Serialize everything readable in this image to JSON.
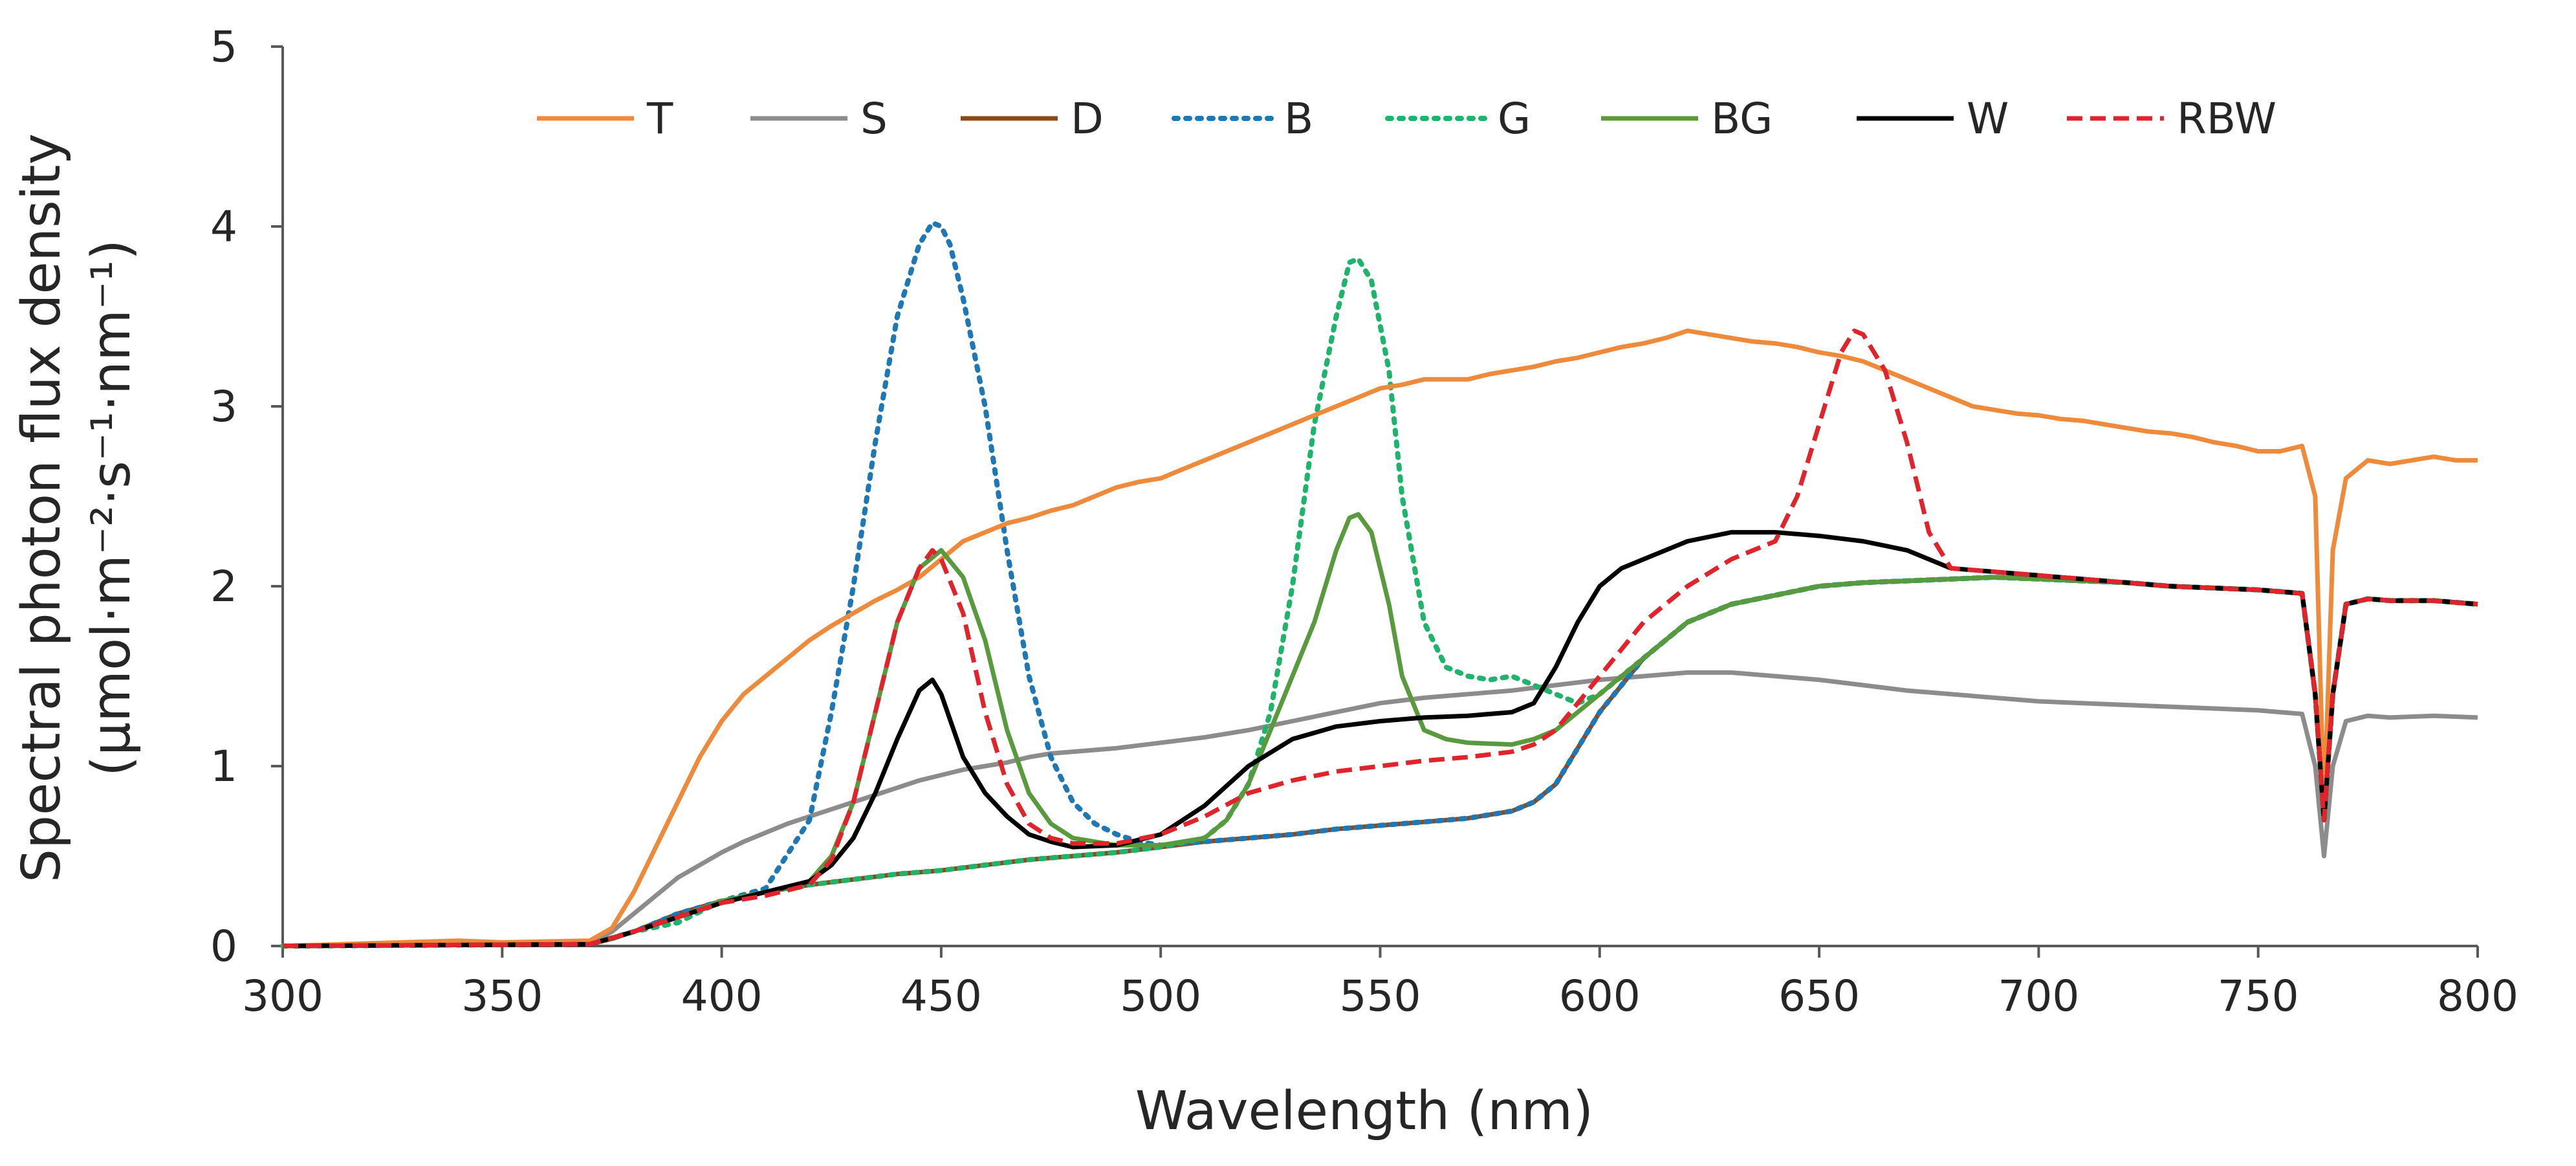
{
  "chart_data": {
    "type": "line",
    "title": "",
    "xlabel": "Wavelength (nm)",
    "ylabel_line1": "Spectral photon flux density",
    "ylabel_line2": "(µmol·m⁻²·s⁻¹·nm⁻¹)",
    "xlim": [
      300,
      800
    ],
    "ylim": [
      0,
      5
    ],
    "xticks": [
      300,
      350,
      400,
      450,
      500,
      550,
      600,
      650,
      700,
      750,
      800
    ],
    "yticks": [
      0,
      1,
      2,
      3,
      4,
      5
    ],
    "grid": false,
    "legend_position": "top",
    "series": [
      {
        "name": "T",
        "color": "#ED8A3C",
        "dash": "solid",
        "x": [
          300,
          340,
          350,
          370,
          375,
          380,
          385,
          390,
          395,
          400,
          405,
          410,
          415,
          420,
          425,
          430,
          435,
          440,
          445,
          450,
          455,
          460,
          465,
          470,
          475,
          480,
          485,
          490,
          495,
          500,
          505,
          510,
          515,
          520,
          525,
          530,
          535,
          540,
          545,
          550,
          555,
          560,
          565,
          570,
          575,
          580,
          585,
          590,
          595,
          600,
          605,
          610,
          615,
          620,
          625,
          630,
          635,
          640,
          645,
          650,
          655,
          660,
          665,
          670,
          675,
          680,
          685,
          690,
          695,
          700,
          705,
          710,
          715,
          720,
          725,
          730,
          735,
          740,
          745,
          750,
          755,
          760,
          763,
          765,
          767,
          770,
          775,
          780,
          785,
          790,
          795,
          800
        ],
        "y": [
          0,
          0.03,
          0.02,
          0.03,
          0.1,
          0.3,
          0.55,
          0.8,
          1.05,
          1.25,
          1.4,
          1.5,
          1.6,
          1.7,
          1.78,
          1.85,
          1.92,
          1.98,
          2.05,
          2.15,
          2.25,
          2.3,
          2.35,
          2.38,
          2.42,
          2.45,
          2.5,
          2.55,
          2.58,
          2.6,
          2.65,
          2.7,
          2.75,
          2.8,
          2.85,
          2.9,
          2.95,
          3.0,
          3.05,
          3.1,
          3.12,
          3.15,
          3.15,
          3.15,
          3.18,
          3.2,
          3.22,
          3.25,
          3.27,
          3.3,
          3.33,
          3.35,
          3.38,
          3.42,
          3.4,
          3.38,
          3.36,
          3.35,
          3.33,
          3.3,
          3.28,
          3.25,
          3.2,
          3.15,
          3.1,
          3.05,
          3.0,
          2.98,
          2.96,
          2.95,
          2.93,
          2.92,
          2.9,
          2.88,
          2.86,
          2.85,
          2.83,
          2.8,
          2.78,
          2.75,
          2.75,
          2.78,
          2.5,
          0.75,
          2.2,
          2.6,
          2.7,
          2.68,
          2.7,
          2.72,
          2.7,
          2.7
        ]
      },
      {
        "name": "S",
        "color": "#8C8C8C",
        "dash": "solid",
        "x": [
          300,
          370,
          375,
          380,
          385,
          390,
          395,
          400,
          405,
          410,
          415,
          420,
          425,
          430,
          435,
          440,
          445,
          450,
          455,
          460,
          465,
          470,
          475,
          480,
          490,
          500,
          510,
          520,
          530,
          540,
          550,
          560,
          570,
          580,
          590,
          600,
          610,
          620,
          630,
          640,
          650,
          660,
          670,
          680,
          690,
          700,
          710,
          720,
          730,
          740,
          750,
          755,
          760,
          763,
          765,
          767,
          770,
          775,
          780,
          790,
          800
        ],
        "y": [
          0,
          0.02,
          0.08,
          0.18,
          0.28,
          0.38,
          0.45,
          0.52,
          0.58,
          0.63,
          0.68,
          0.72,
          0.76,
          0.8,
          0.84,
          0.88,
          0.92,
          0.95,
          0.98,
          1.0,
          1.02,
          1.05,
          1.07,
          1.08,
          1.1,
          1.13,
          1.16,
          1.2,
          1.25,
          1.3,
          1.35,
          1.38,
          1.4,
          1.42,
          1.45,
          1.48,
          1.5,
          1.52,
          1.52,
          1.5,
          1.48,
          1.45,
          1.42,
          1.4,
          1.38,
          1.36,
          1.35,
          1.34,
          1.33,
          1.32,
          1.31,
          1.3,
          1.29,
          1.0,
          0.5,
          1.0,
          1.25,
          1.28,
          1.27,
          1.28,
          1.27
        ]
      },
      {
        "name": "D",
        "color": "#8B4A1E",
        "dash": "solid",
        "x": [
          300,
          370,
          375,
          380,
          385,
          390,
          400,
          410,
          420,
          430,
          440,
          450,
          460,
          470,
          480,
          490,
          500,
          510,
          520,
          530,
          540,
          550,
          560,
          570,
          580,
          585,
          590,
          595,
          600,
          605,
          610,
          620,
          630,
          640,
          650,
          660,
          670,
          680,
          690,
          700,
          710,
          720,
          730,
          740,
          750,
          755,
          760,
          763,
          765,
          767,
          770,
          775,
          780,
          790,
          800
        ],
        "y": [
          0,
          0.01,
          0.04,
          0.08,
          0.13,
          0.18,
          0.25,
          0.3,
          0.34,
          0.37,
          0.4,
          0.42,
          0.45,
          0.48,
          0.5,
          0.52,
          0.55,
          0.58,
          0.6,
          0.62,
          0.65,
          0.67,
          0.69,
          0.71,
          0.75,
          0.8,
          0.9,
          1.1,
          1.3,
          1.45,
          1.6,
          1.8,
          1.9,
          1.95,
          2.0,
          2.02,
          2.03,
          2.04,
          2.05,
          2.04,
          2.03,
          2.02,
          2.0,
          1.99,
          1.98,
          1.97,
          1.96,
          1.4,
          0.7,
          1.4,
          1.9,
          1.93,
          1.92,
          1.92,
          1.9
        ]
      },
      {
        "name": "B",
        "color": "#1F77B4",
        "dash": "dot",
        "x": [
          300,
          370,
          380,
          390,
          400,
          410,
          420,
          425,
          430,
          435,
          440,
          445,
          448,
          450,
          452,
          455,
          460,
          465,
          470,
          475,
          480,
          485,
          490,
          495,
          500,
          510,
          520,
          530,
          540,
          550,
          560,
          570,
          580,
          585,
          590,
          595,
          600,
          605,
          610,
          620,
          630,
          640,
          650,
          660,
          670,
          680,
          690,
          700,
          710,
          720,
          730,
          740,
          750,
          755,
          760,
          763,
          765,
          767,
          770,
          775,
          780,
          790,
          800
        ],
        "y": [
          0,
          0.01,
          0.08,
          0.18,
          0.25,
          0.32,
          0.7,
          1.3,
          2.0,
          2.8,
          3.5,
          3.9,
          4.02,
          4.0,
          3.9,
          3.6,
          3.0,
          2.2,
          1.5,
          1.05,
          0.8,
          0.68,
          0.62,
          0.58,
          0.56,
          0.58,
          0.6,
          0.62,
          0.65,
          0.67,
          0.69,
          0.71,
          0.75,
          0.8,
          0.9,
          1.1,
          1.3,
          1.45,
          1.6,
          1.8,
          1.9,
          1.95,
          2.0,
          2.02,
          2.03,
          2.04,
          2.05,
          2.04,
          2.03,
          2.02,
          2.0,
          1.99,
          1.98,
          1.97,
          1.96,
          1.4,
          0.7,
          1.4,
          1.9,
          1.93,
          1.92,
          1.92,
          1.9
        ]
      },
      {
        "name": "G",
        "color": "#1FB36B",
        "dash": "dot",
        "x": [
          300,
          370,
          380,
          390,
          400,
          410,
          420,
          430,
          440,
          450,
          460,
          470,
          480,
          490,
          500,
          510,
          515,
          520,
          525,
          530,
          535,
          540,
          543,
          545,
          548,
          552,
          555,
          560,
          565,
          570,
          575,
          580,
          585,
          590,
          595,
          600,
          605,
          610,
          620,
          630,
          640,
          650,
          660,
          670,
          680,
          690,
          700,
          710,
          720,
          730,
          740,
          750,
          755,
          760,
          763,
          765,
          767,
          770,
          775,
          780,
          790,
          800
        ],
        "y": [
          0,
          0.01,
          0.08,
          0.13,
          0.25,
          0.3,
          0.34,
          0.37,
          0.4,
          0.42,
          0.45,
          0.48,
          0.5,
          0.52,
          0.55,
          0.6,
          0.7,
          0.9,
          1.3,
          2.0,
          2.9,
          3.5,
          3.8,
          3.82,
          3.7,
          3.2,
          2.5,
          1.8,
          1.55,
          1.5,
          1.48,
          1.5,
          1.45,
          1.4,
          1.35,
          1.4,
          1.5,
          1.6,
          1.8,
          1.9,
          1.95,
          2.0,
          2.02,
          2.03,
          2.04,
          2.05,
          2.04,
          2.03,
          2.02,
          2.0,
          1.99,
          1.98,
          1.97,
          1.96,
          1.4,
          0.7,
          1.4,
          1.9,
          1.93,
          1.92,
          1.92,
          1.9
        ]
      },
      {
        "name": "BG",
        "color": "#5A9A3E",
        "dash": "solid",
        "x": [
          300,
          370,
          380,
          390,
          400,
          410,
          420,
          425,
          430,
          435,
          440,
          445,
          450,
          455,
          460,
          465,
          470,
          475,
          480,
          490,
          500,
          510,
          515,
          520,
          525,
          530,
          535,
          540,
          543,
          545,
          548,
          552,
          555,
          560,
          565,
          570,
          580,
          585,
          590,
          595,
          600,
          605,
          610,
          620,
          630,
          640,
          650,
          660,
          670,
          680,
          690,
          700,
          710,
          720,
          730,
          740,
          750,
          755,
          760,
          763,
          765,
          767,
          770,
          775,
          780,
          790,
          800
        ],
        "y": [
          0,
          0.01,
          0.08,
          0.16,
          0.25,
          0.3,
          0.36,
          0.5,
          0.8,
          1.3,
          1.8,
          2.1,
          2.2,
          2.05,
          1.7,
          1.2,
          0.85,
          0.68,
          0.6,
          0.56,
          0.56,
          0.6,
          0.7,
          0.9,
          1.2,
          1.5,
          1.8,
          2.2,
          2.38,
          2.4,
          2.3,
          1.9,
          1.5,
          1.2,
          1.15,
          1.13,
          1.12,
          1.15,
          1.2,
          1.3,
          1.4,
          1.5,
          1.6,
          1.8,
          1.9,
          1.95,
          2.0,
          2.02,
          2.03,
          2.04,
          2.05,
          2.04,
          2.03,
          2.02,
          2.0,
          1.99,
          1.98,
          1.97,
          1.96,
          1.4,
          0.7,
          1.4,
          1.9,
          1.93,
          1.92,
          1.92,
          1.9
        ]
      },
      {
        "name": "W",
        "color": "#000000",
        "dash": "solid",
        "x": [
          300,
          370,
          380,
          390,
          400,
          410,
          420,
          425,
          430,
          435,
          440,
          445,
          448,
          450,
          455,
          460,
          465,
          470,
          475,
          480,
          490,
          500,
          510,
          520,
          530,
          540,
          550,
          560,
          570,
          580,
          585,
          590,
          595,
          600,
          605,
          610,
          620,
          630,
          640,
          650,
          660,
          670,
          680,
          690,
          700,
          710,
          720,
          730,
          740,
          750,
          755,
          760,
          763,
          765,
          767,
          770,
          775,
          780,
          790,
          800
        ],
        "y": [
          0,
          0.01,
          0.08,
          0.16,
          0.24,
          0.3,
          0.36,
          0.45,
          0.6,
          0.85,
          1.15,
          1.42,
          1.48,
          1.4,
          1.05,
          0.85,
          0.72,
          0.62,
          0.58,
          0.55,
          0.56,
          0.62,
          0.78,
          1.0,
          1.15,
          1.22,
          1.25,
          1.27,
          1.28,
          1.3,
          1.35,
          1.55,
          1.8,
          2.0,
          2.1,
          2.15,
          2.25,
          2.3,
          2.3,
          2.28,
          2.25,
          2.2,
          2.1,
          2.08,
          2.06,
          2.04,
          2.02,
          2.0,
          1.99,
          1.98,
          1.97,
          1.96,
          1.4,
          0.7,
          1.4,
          1.9,
          1.93,
          1.92,
          1.92,
          1.9
        ]
      },
      {
        "name": "RBW",
        "color": "#E0242B",
        "dash": "dash",
        "x": [
          300,
          370,
          380,
          390,
          400,
          410,
          420,
          425,
          430,
          435,
          440,
          445,
          448,
          450,
          455,
          460,
          465,
          470,
          475,
          480,
          490,
          500,
          510,
          520,
          530,
          540,
          550,
          560,
          570,
          580,
          585,
          590,
          595,
          600,
          605,
          610,
          620,
          630,
          640,
          645,
          650,
          655,
          658,
          660,
          665,
          670,
          675,
          680,
          690,
          700,
          710,
          720,
          730,
          740,
          750,
          755,
          760,
          763,
          765,
          767,
          770,
          775,
          780,
          790,
          800
        ],
        "y": [
          0,
          0.01,
          0.08,
          0.16,
          0.24,
          0.28,
          0.34,
          0.48,
          0.8,
          1.3,
          1.8,
          2.1,
          2.2,
          2.15,
          1.85,
          1.3,
          0.9,
          0.68,
          0.6,
          0.57,
          0.57,
          0.62,
          0.72,
          0.85,
          0.92,
          0.97,
          1.0,
          1.03,
          1.05,
          1.08,
          1.12,
          1.2,
          1.35,
          1.5,
          1.65,
          1.8,
          2.0,
          2.15,
          2.25,
          2.5,
          2.9,
          3.3,
          3.42,
          3.4,
          3.2,
          2.8,
          2.3,
          2.1,
          2.08,
          2.06,
          2.04,
          2.02,
          2.0,
          1.99,
          1.98,
          1.97,
          1.96,
          1.4,
          0.7,
          1.4,
          1.9,
          1.93,
          1.92,
          1.92,
          1.9
        ]
      }
    ]
  }
}
